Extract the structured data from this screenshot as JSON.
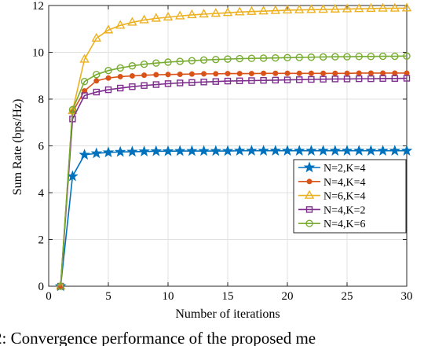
{
  "caption": "2: Convergence performance of the proposed me",
  "chart_data": {
    "type": "line",
    "title": "",
    "xlabel": "Number of iterations",
    "ylabel": "Sum Rate (bps/Hz)",
    "xlim": [
      0,
      30
    ],
    "ylim": [
      0,
      12
    ],
    "xticks": [
      0,
      5,
      10,
      15,
      20,
      25,
      30
    ],
    "yticks": [
      0,
      2,
      4,
      6,
      8,
      10,
      12
    ],
    "grid": true,
    "legend_position": "right",
    "x": [
      1,
      2,
      3,
      4,
      5,
      6,
      7,
      8,
      9,
      10,
      11,
      12,
      13,
      14,
      15,
      16,
      17,
      18,
      19,
      20,
      21,
      22,
      23,
      24,
      25,
      26,
      27,
      28,
      29,
      30
    ],
    "series": [
      {
        "name": "N=2,K=4",
        "color": "#0072BD",
        "marker": "star",
        "values": [
          0,
          4.7,
          5.62,
          5.68,
          5.72,
          5.74,
          5.75,
          5.76,
          5.77,
          5.77,
          5.78,
          5.78,
          5.78,
          5.78,
          5.78,
          5.79,
          5.79,
          5.79,
          5.79,
          5.79,
          5.79,
          5.79,
          5.79,
          5.79,
          5.79,
          5.79,
          5.79,
          5.79,
          5.79,
          5.79
        ]
      },
      {
        "name": "N=4,K=4",
        "color": "#D95319",
        "marker": "dot",
        "values": [
          0,
          7.45,
          8.35,
          8.78,
          8.9,
          8.96,
          8.99,
          9.02,
          9.04,
          9.05,
          9.06,
          9.07,
          9.08,
          9.08,
          9.09,
          9.09,
          9.09,
          9.1,
          9.1,
          9.1,
          9.1,
          9.1,
          9.1,
          9.1,
          9.1,
          9.11,
          9.11,
          9.11,
          9.11,
          9.11
        ]
      },
      {
        "name": "N=6,K=4",
        "color": "#EDB120",
        "marker": "triangle",
        "values": [
          0,
          7.5,
          9.7,
          10.6,
          10.95,
          11.15,
          11.28,
          11.38,
          11.45,
          11.5,
          11.55,
          11.6,
          11.63,
          11.66,
          11.69,
          11.72,
          11.74,
          11.76,
          11.78,
          11.8,
          11.81,
          11.82,
          11.83,
          11.84,
          11.85,
          11.86,
          11.87,
          11.88,
          11.88,
          11.89
        ]
      },
      {
        "name": "N=4,K=2",
        "color": "#7E2F8E",
        "marker": "square",
        "values": [
          0,
          7.15,
          8.15,
          8.3,
          8.4,
          8.47,
          8.53,
          8.58,
          8.62,
          8.66,
          8.69,
          8.71,
          8.73,
          8.75,
          8.77,
          8.78,
          8.79,
          8.8,
          8.81,
          8.82,
          8.83,
          8.84,
          8.85,
          8.86,
          8.86,
          8.87,
          8.87,
          8.88,
          8.88,
          8.89
        ]
      },
      {
        "name": "N=4,K=6",
        "color": "#77AC30",
        "marker": "circle",
        "values": [
          0,
          7.55,
          8.75,
          9.05,
          9.22,
          9.33,
          9.42,
          9.49,
          9.54,
          9.58,
          9.61,
          9.64,
          9.67,
          9.69,
          9.71,
          9.73,
          9.74,
          9.75,
          9.76,
          9.77,
          9.78,
          9.79,
          9.8,
          9.81,
          9.81,
          9.82,
          9.82,
          9.83,
          9.83,
          9.84
        ]
      }
    ]
  }
}
